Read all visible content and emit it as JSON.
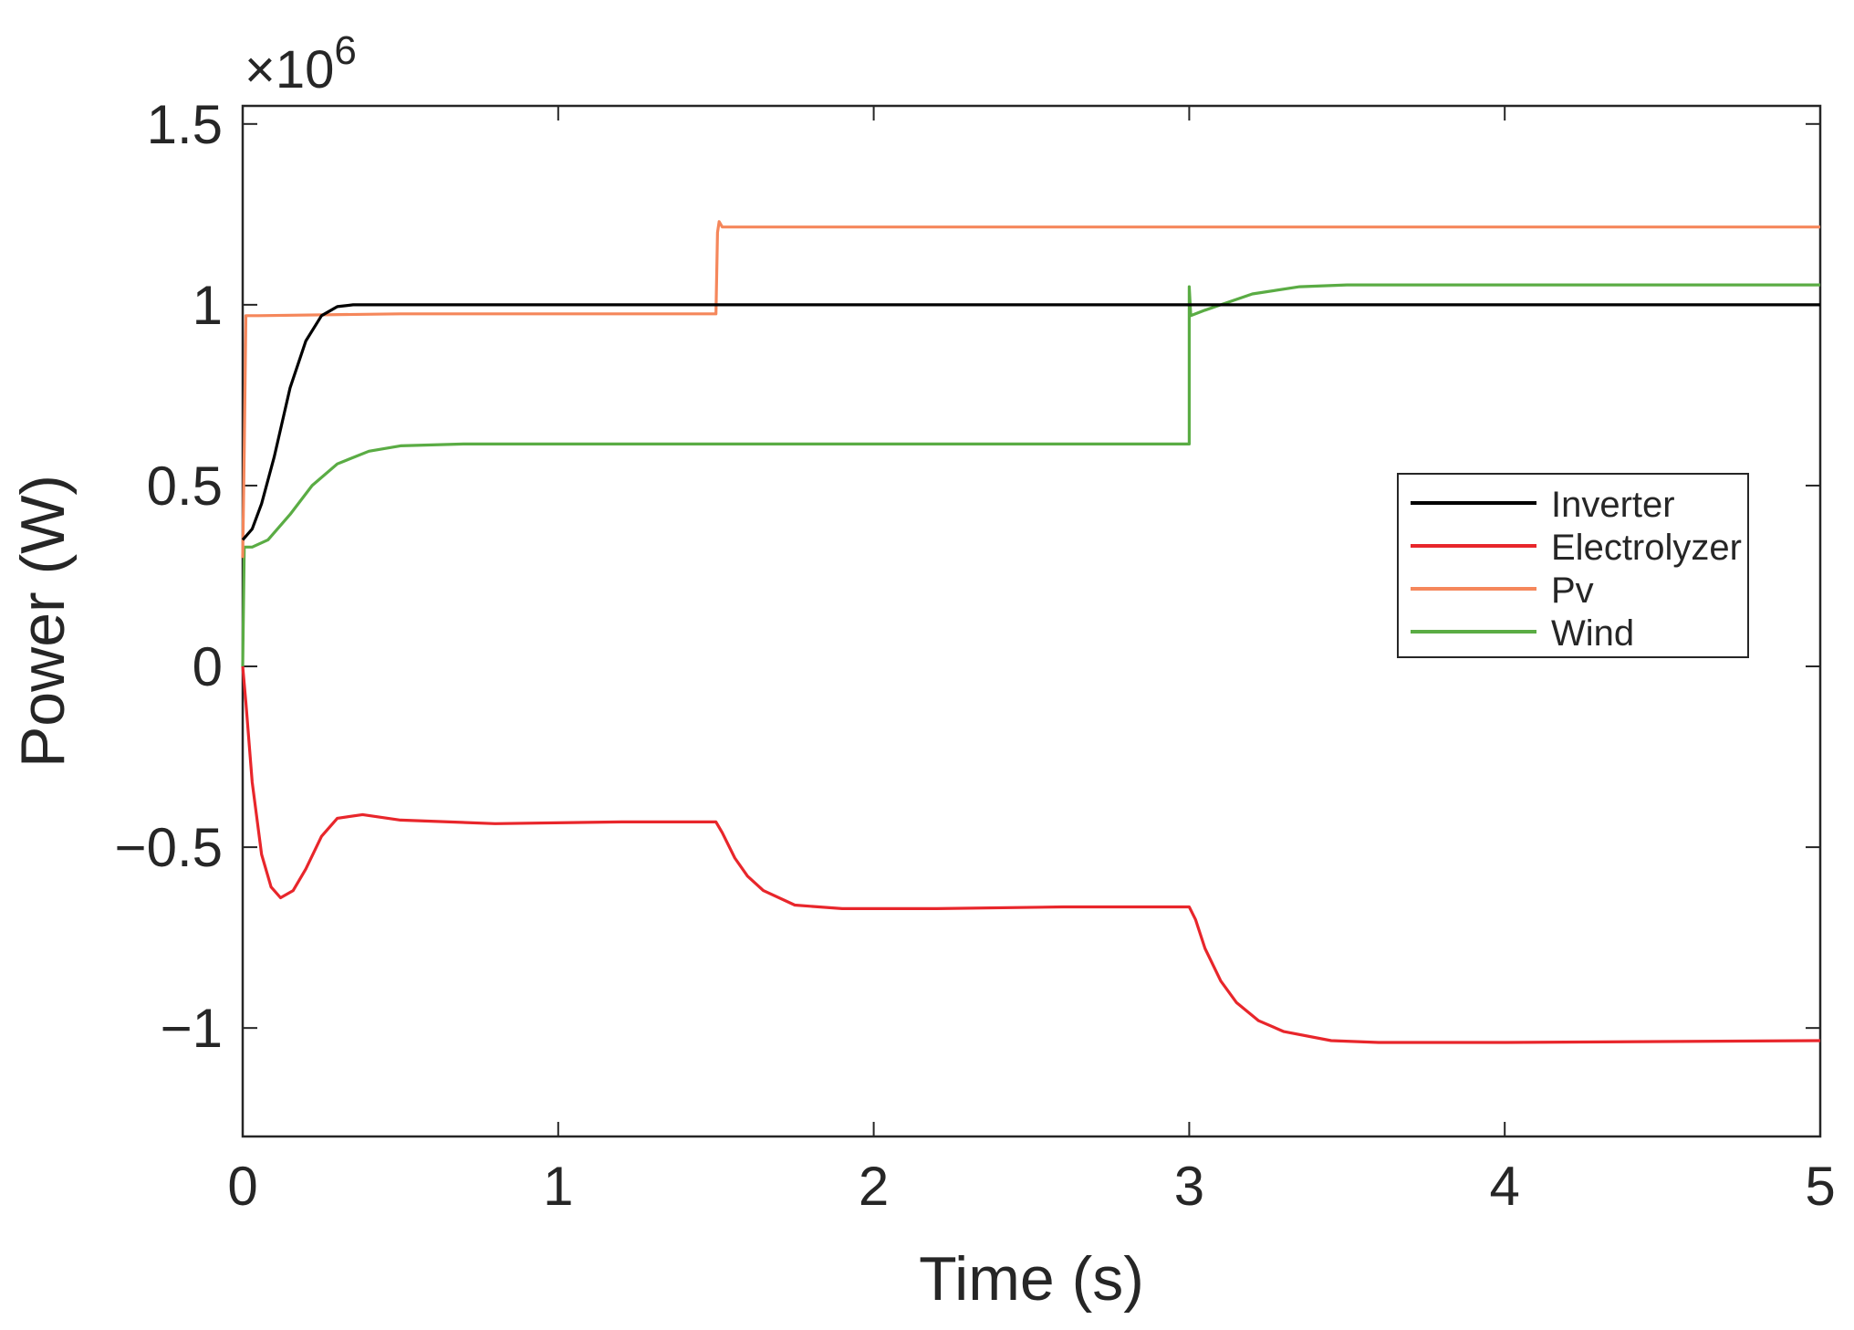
{
  "chart_data": {
    "type": "line",
    "xlabel": "Time (s)",
    "ylabel": "Power (W)",
    "exponent_label": "×10",
    "exponent_power": "6",
    "xlim": [
      0,
      5
    ],
    "ylim": [
      -1.3,
      1.55
    ],
    "y_scale_factor": 1000000,
    "x_ticks": [
      0,
      1,
      2,
      3,
      4,
      5
    ],
    "x_tick_labels": [
      "0",
      "1",
      "2",
      "3",
      "4",
      "5"
    ],
    "y_ticks": [
      -1,
      -0.5,
      0,
      0.5,
      1,
      1.5
    ],
    "y_tick_labels": [
      "−1",
      "−0.5",
      "0",
      "0.5",
      "1",
      "1.5"
    ],
    "grid": false,
    "legend_placement": "right",
    "series": [
      {
        "name": "Inverter",
        "color": "#000000",
        "points": [
          [
            0,
            0.35
          ],
          [
            0.03,
            0.38
          ],
          [
            0.06,
            0.45
          ],
          [
            0.1,
            0.58
          ],
          [
            0.15,
            0.77
          ],
          [
            0.2,
            0.9
          ],
          [
            0.25,
            0.97
          ],
          [
            0.3,
            0.995
          ],
          [
            0.35,
            1.0
          ],
          [
            0.5,
            1.0
          ],
          [
            1.5,
            1.0
          ],
          [
            3,
            1.0
          ],
          [
            4,
            1.0
          ],
          [
            5,
            1.0
          ]
        ]
      },
      {
        "name": "Electrolyzer",
        "color": "#e8262b",
        "points": [
          [
            0,
            0
          ],
          [
            0.01,
            -0.1
          ],
          [
            0.03,
            -0.32
          ],
          [
            0.06,
            -0.52
          ],
          [
            0.09,
            -0.61
          ],
          [
            0.12,
            -0.64
          ],
          [
            0.16,
            -0.62
          ],
          [
            0.2,
            -0.56
          ],
          [
            0.25,
            -0.47
          ],
          [
            0.3,
            -0.42
          ],
          [
            0.38,
            -0.41
          ],
          [
            0.5,
            -0.425
          ],
          [
            0.8,
            -0.435
          ],
          [
            1.2,
            -0.43
          ],
          [
            1.5,
            -0.43
          ],
          [
            1.52,
            -0.46
          ],
          [
            1.56,
            -0.53
          ],
          [
            1.6,
            -0.58
          ],
          [
            1.65,
            -0.62
          ],
          [
            1.75,
            -0.66
          ],
          [
            1.9,
            -0.67
          ],
          [
            2.2,
            -0.67
          ],
          [
            2.6,
            -0.665
          ],
          [
            3.0,
            -0.665
          ],
          [
            3.02,
            -0.7
          ],
          [
            3.05,
            -0.78
          ],
          [
            3.1,
            -0.87
          ],
          [
            3.15,
            -0.93
          ],
          [
            3.22,
            -0.98
          ],
          [
            3.3,
            -1.01
          ],
          [
            3.45,
            -1.035
          ],
          [
            3.6,
            -1.04
          ],
          [
            4.0,
            -1.04
          ],
          [
            5.0,
            -1.035
          ]
        ]
      },
      {
        "name": "Pv",
        "color": "#f5875b",
        "points": [
          [
            0,
            0.3
          ],
          [
            0.005,
            0.6
          ],
          [
            0.01,
            0.97
          ],
          [
            0.05,
            0.97
          ],
          [
            0.5,
            0.975
          ],
          [
            1.0,
            0.975
          ],
          [
            1.5,
            0.975
          ],
          [
            1.505,
            1.2
          ],
          [
            1.51,
            1.23
          ],
          [
            1.52,
            1.215
          ],
          [
            2,
            1.215
          ],
          [
            3,
            1.215
          ],
          [
            4,
            1.215
          ],
          [
            5,
            1.215
          ]
        ]
      },
      {
        "name": "Wind",
        "color": "#5aac44",
        "points": [
          [
            0,
            0
          ],
          [
            0.005,
            0.33
          ],
          [
            0.03,
            0.33
          ],
          [
            0.08,
            0.35
          ],
          [
            0.15,
            0.42
          ],
          [
            0.22,
            0.5
          ],
          [
            0.3,
            0.56
          ],
          [
            0.4,
            0.595
          ],
          [
            0.5,
            0.61
          ],
          [
            0.7,
            0.615
          ],
          [
            1.5,
            0.615
          ],
          [
            2.5,
            0.615
          ],
          [
            3.0,
            0.615
          ],
          [
            3.0,
            1.05
          ],
          [
            3.005,
            0.97
          ],
          [
            3.05,
            0.985
          ],
          [
            3.1,
            1.0
          ],
          [
            3.2,
            1.03
          ],
          [
            3.35,
            1.05
          ],
          [
            3.5,
            1.055
          ],
          [
            4,
            1.055
          ],
          [
            5,
            1.055
          ]
        ]
      }
    ]
  }
}
